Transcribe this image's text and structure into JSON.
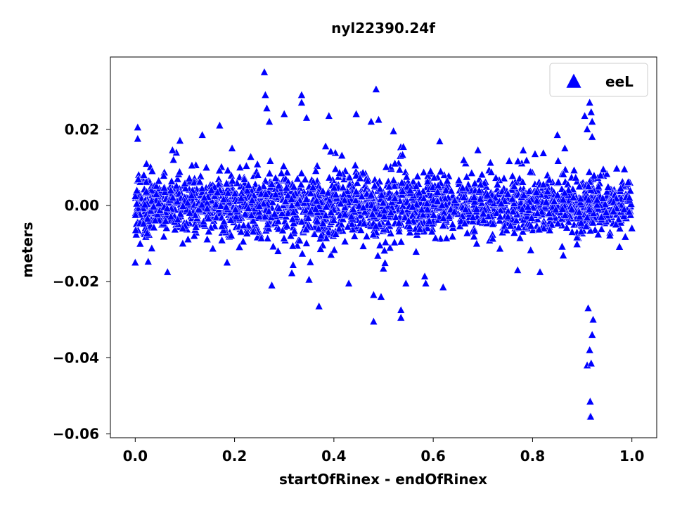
{
  "chart_data": {
    "type": "scatter",
    "title": "nyl22390.24f",
    "xlabel": "startOfRinex - endOfRinex",
    "ylabel": "meters",
    "xlim": [
      -0.05,
      1.05
    ],
    "ylim": [
      -0.061,
      0.039
    ],
    "xticks": [
      0.0,
      0.2,
      0.4,
      0.6,
      0.8,
      1.0
    ],
    "xtick_labels": [
      "0.0",
      "0.2",
      "0.4",
      "0.6",
      "0.8",
      "1.0"
    ],
    "yticks": [
      0.02,
      0.0,
      -0.02,
      -0.04,
      -0.06
    ],
    "ytick_labels": [
      "0.02",
      "0.00",
      "−0.02",
      "−0.04",
      "−0.06"
    ],
    "grid": false,
    "legend_position": "top-right",
    "marker": "triangle-up",
    "color": "#0000ff",
    "series": [
      {
        "name": "eeL",
        "band": {
          "x": [
            0.0,
            0.1,
            0.2,
            0.3,
            0.4,
            0.5,
            0.6,
            0.7,
            0.8,
            0.9,
            1.0
          ],
          "spread": [
            0.006,
            0.0065,
            0.007,
            0.0075,
            0.0075,
            0.0075,
            0.0065,
            0.006,
            0.006,
            0.006,
            0.0045
          ]
        },
        "outliers": [
          {
            "x": 0.0,
            "y": -0.015
          },
          {
            "x": 0.005,
            "y": 0.0205
          },
          {
            "x": 0.005,
            "y": 0.0175
          },
          {
            "x": 0.065,
            "y": -0.0175
          },
          {
            "x": 0.075,
            "y": 0.0145
          },
          {
            "x": 0.09,
            "y": 0.017
          },
          {
            "x": 0.135,
            "y": 0.0185
          },
          {
            "x": 0.17,
            "y": 0.021
          },
          {
            "x": 0.185,
            "y": -0.015
          },
          {
            "x": 0.195,
            "y": 0.015
          },
          {
            "x": 0.26,
            "y": 0.035
          },
          {
            "x": 0.262,
            "y": 0.029
          },
          {
            "x": 0.265,
            "y": 0.0255
          },
          {
            "x": 0.27,
            "y": 0.022
          },
          {
            "x": 0.275,
            "y": -0.021
          },
          {
            "x": 0.3,
            "y": 0.024
          },
          {
            "x": 0.335,
            "y": 0.029
          },
          {
            "x": 0.335,
            "y": 0.027
          },
          {
            "x": 0.345,
            "y": 0.023
          },
          {
            "x": 0.35,
            "y": -0.0195
          },
          {
            "x": 0.37,
            "y": -0.0265
          },
          {
            "x": 0.39,
            "y": 0.0235
          },
          {
            "x": 0.43,
            "y": -0.0205
          },
          {
            "x": 0.445,
            "y": 0.024
          },
          {
            "x": 0.475,
            "y": 0.022
          },
          {
            "x": 0.48,
            "y": -0.0305
          },
          {
            "x": 0.48,
            "y": -0.0235
          },
          {
            "x": 0.485,
            "y": 0.0305
          },
          {
            "x": 0.49,
            "y": 0.0225
          },
          {
            "x": 0.495,
            "y": -0.024
          },
          {
            "x": 0.52,
            "y": 0.0195
          },
          {
            "x": 0.535,
            "y": -0.0275
          },
          {
            "x": 0.535,
            "y": -0.0295
          },
          {
            "x": 0.545,
            "y": -0.0205
          },
          {
            "x": 0.585,
            "y": -0.0205
          },
          {
            "x": 0.62,
            "y": -0.0215
          },
          {
            "x": 0.69,
            "y": 0.0145
          },
          {
            "x": 0.77,
            "y": -0.017
          },
          {
            "x": 0.805,
            "y": 0.0135
          },
          {
            "x": 0.815,
            "y": -0.0175
          },
          {
            "x": 0.85,
            "y": 0.0185
          },
          {
            "x": 0.865,
            "y": 0.015
          },
          {
            "x": 0.905,
            "y": 0.0235
          },
          {
            "x": 0.91,
            "y": 0.02
          },
          {
            "x": 0.915,
            "y": 0.027
          },
          {
            "x": 0.918,
            "y": 0.0245
          },
          {
            "x": 0.92,
            "y": 0.022
          },
          {
            "x": 0.92,
            "y": 0.018
          },
          {
            "x": 0.91,
            "y": -0.042
          },
          {
            "x": 0.915,
            "y": -0.038
          },
          {
            "x": 0.918,
            "y": -0.0415
          },
          {
            "x": 0.92,
            "y": -0.034
          },
          {
            "x": 0.922,
            "y": -0.03
          },
          {
            "x": 0.912,
            "y": -0.027
          },
          {
            "x": 0.916,
            "y": -0.0515
          },
          {
            "x": 0.916,
            "y": -0.0555
          },
          {
            "x": 0.917,
            "y": -0.0555
          },
          {
            "x": 0.985,
            "y": 0.0095
          },
          {
            "x": 0.995,
            "y": 0.002
          },
          {
            "x": 1.0,
            "y": -0.006
          }
        ]
      }
    ]
  }
}
